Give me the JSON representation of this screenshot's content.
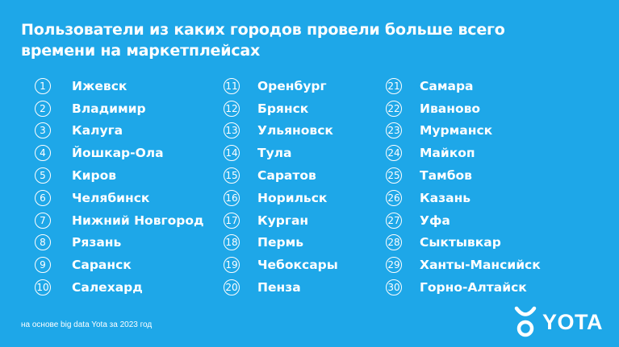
{
  "title": {
    "line1": "Пользователи из каких городов провели больше всего",
    "line2": "времени на маркетплейсах"
  },
  "columns": [
    [
      {
        "num": "1",
        "city": "Ижевск"
      },
      {
        "num": "2",
        "city": "Владимир"
      },
      {
        "num": "3",
        "city": "Калуга"
      },
      {
        "num": "4",
        "city": "Йошкар-Ола"
      },
      {
        "num": "5",
        "city": "Киров"
      },
      {
        "num": "6",
        "city": "Челябинск"
      },
      {
        "num": "7",
        "city": "Нижний Новгород"
      },
      {
        "num": "8",
        "city": "Рязань"
      },
      {
        "num": "9",
        "city": "Саранск"
      },
      {
        "num": "10",
        "city": "Салехард"
      }
    ],
    [
      {
        "num": "11",
        "city": "Оренбург"
      },
      {
        "num": "12",
        "city": "Брянск"
      },
      {
        "num": "13",
        "city": "Ульяновск"
      },
      {
        "num": "14",
        "city": "Тула"
      },
      {
        "num": "15",
        "city": "Саратов"
      },
      {
        "num": "16",
        "city": "Норильск"
      },
      {
        "num": "17",
        "city": "Курган"
      },
      {
        "num": "18",
        "city": "Пермь"
      },
      {
        "num": "19",
        "city": "Чебоксары"
      },
      {
        "num": "20",
        "city": "Пенза"
      }
    ],
    [
      {
        "num": "21",
        "city": "Самара"
      },
      {
        "num": "22",
        "city": "Иваново"
      },
      {
        "num": "23",
        "city": "Мурманск"
      },
      {
        "num": "24",
        "city": "Майкоп"
      },
      {
        "num": "25",
        "city": "Тамбов"
      },
      {
        "num": "26",
        "city": "Казань"
      },
      {
        "num": "27",
        "city": "Уфа"
      },
      {
        "num": "28",
        "city": "Сыктывкар"
      },
      {
        "num": "29",
        "city": "Ханты-Мансийск"
      },
      {
        "num": "30",
        "city": "Горно-Алтайск"
      }
    ]
  ],
  "footnote": "на основе big data Yota за 2023 год",
  "logo": {
    "text": "YOTA",
    "icon": "yota-logo-icon"
  },
  "colors": {
    "background": "#1ea7e8",
    "foreground": "#ffffff"
  }
}
